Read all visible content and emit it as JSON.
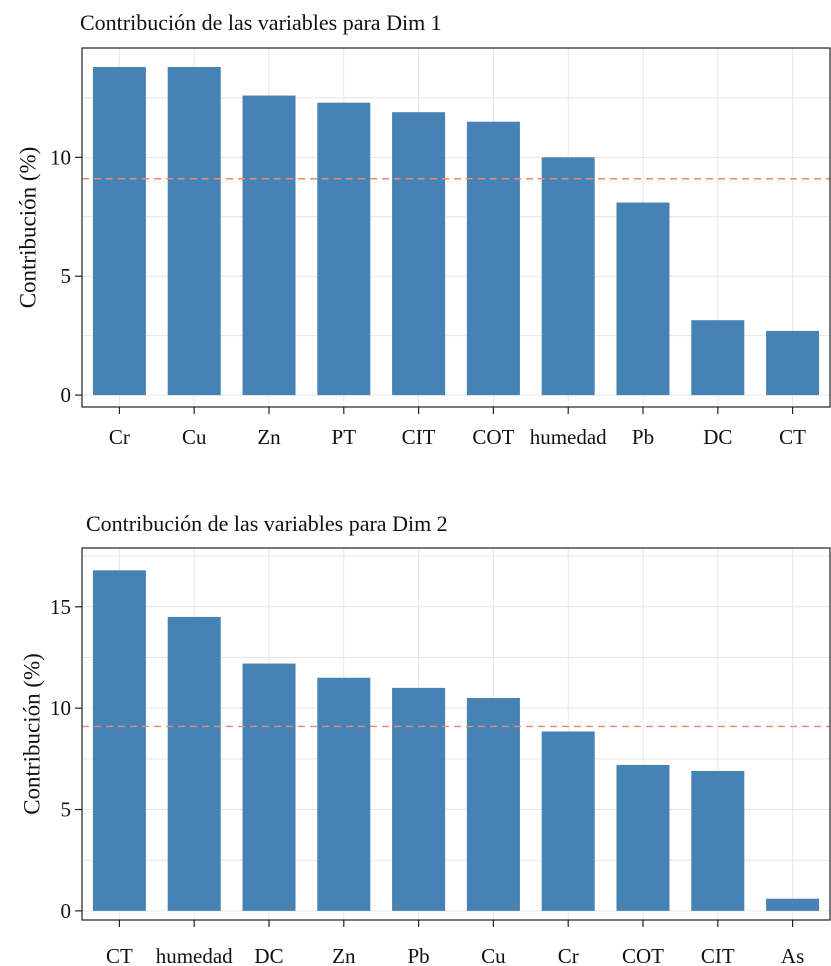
{
  "chart_data": [
    {
      "type": "bar",
      "title": "Contribución de las variables para Dim 1",
      "xlabel": "",
      "ylabel": "Contribución (%)",
      "categories": [
        "Cr",
        "Cu",
        "Zn",
        "PT",
        "CIT",
        "COT",
        "humedad",
        "Pb",
        "DC",
        "CT"
      ],
      "values": [
        13.8,
        13.8,
        12.6,
        12.3,
        11.9,
        11.5,
        10.0,
        8.1,
        3.15,
        2.7
      ],
      "reference_line": 9.1,
      "yticks": [
        0,
        5,
        10
      ],
      "ylim": [
        -0.5,
        14.6
      ],
      "grid": true,
      "bar_color": "#4682b4",
      "reference_color": "#ec8b6e"
    },
    {
      "type": "bar",
      "title": "Contribución de las variables para Dim 2",
      "xlabel": "",
      "ylabel": "Contribución (%)",
      "categories": [
        "CT",
        "humedad",
        "DC",
        "Zn",
        "Pb",
        "Cu",
        "Cr",
        "COT",
        "CIT",
        "As"
      ],
      "values": [
        16.8,
        14.5,
        12.2,
        11.5,
        11.0,
        10.5,
        8.85,
        7.2,
        6.9,
        0.6
      ],
      "reference_line": 9.1,
      "yticks": [
        0,
        5,
        10,
        15
      ],
      "ylim": [
        -0.45,
        17.9
      ],
      "grid": true,
      "bar_color": "#4682b4",
      "reference_color": "#ec8b6e"
    }
  ]
}
